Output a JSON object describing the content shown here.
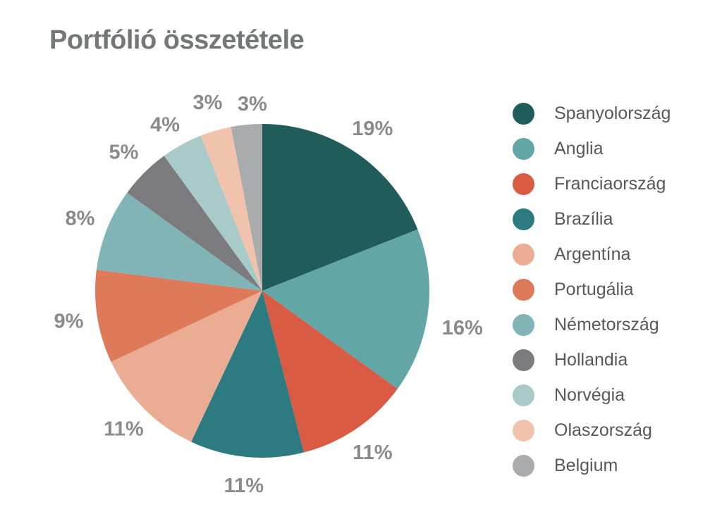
{
  "title": "Portfólió összetétele",
  "chart_data": {
    "type": "pie",
    "title": "Portfólió összetétele",
    "unit": "%",
    "start_angle_deg": 0,
    "direction": "clockwise",
    "legend_position": "right",
    "labels": [
      "Spanyolország",
      "Anglia",
      "Franciaország",
      "Brazília",
      "Argentína",
      "Portugália",
      "Németország",
      "Hollandia",
      "Norvégia",
      "Olaszország",
      "Belgium"
    ],
    "values": [
      19,
      16,
      11,
      11,
      11,
      9,
      8,
      5,
      4,
      3,
      3
    ],
    "slice_labels": [
      "19%",
      "16%",
      "11%",
      "11%",
      "11%",
      "9%",
      "8%",
      "5%",
      "4%",
      "3%",
      "3%"
    ],
    "colors": [
      "#215C5D",
      "#63A6A6",
      "#D95B43",
      "#2B7B81",
      "#EAAD94",
      "#DE795A",
      "#80B4B6",
      "#7C7C7E",
      "#A8CBC9",
      "#F1C3AC",
      "#A9ABAC"
    ]
  },
  "colors": {
    "background": "#FFFFFF",
    "title_text": "#757679",
    "percent_label_text": "#8A8A8D",
    "legend_text": "#58585A"
  }
}
